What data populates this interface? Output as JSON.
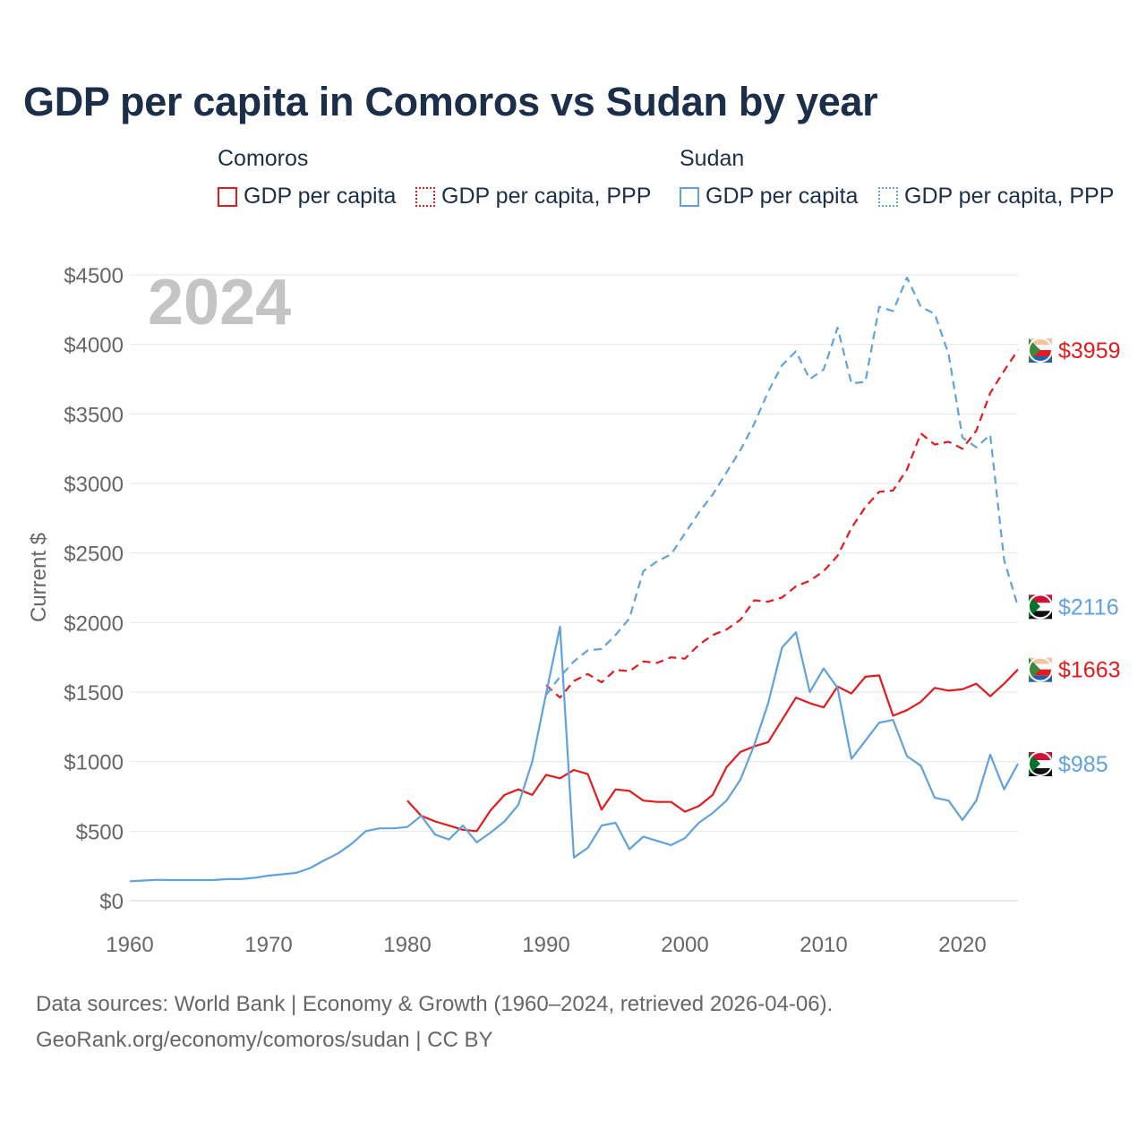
{
  "title": "GDP per capita in Comoros vs Sudan by year",
  "legend": {
    "groups": [
      {
        "name": "Comoros",
        "items": [
          "GDP per capita",
          "GDP per capita, PPP"
        ],
        "color": "#e41a1c"
      },
      {
        "name": "Sudan",
        "items": [
          "GDP per capita",
          "GDP per capita, PPP"
        ],
        "color": "#5fa2dd"
      }
    ]
  },
  "footer": {
    "line1": "Data sources: World Bank | Economy & Growth (1960–2024, retrieved 2026-04-06).",
    "line2": "GeoRank.org/economy/comoros/sudan | CC BY"
  },
  "chart_data": {
    "type": "line",
    "title": "GDP per capita in Comoros vs Sudan by year",
    "watermark": "2024",
    "xlabel": "",
    "ylabel": "Current $",
    "xlim": [
      1960,
      2024
    ],
    "ylim": [
      0,
      4500
    ],
    "x_ticks": [
      1960,
      1970,
      1980,
      1990,
      2000,
      2010,
      2020
    ],
    "y_ticks": [
      0,
      500,
      1000,
      1500,
      2000,
      2500,
      3000,
      3500,
      4000,
      4500
    ],
    "y_tick_labels": [
      "$0",
      "$500",
      "$1000",
      "$1500",
      "$2000",
      "$2500",
      "$3000",
      "$3500",
      "$4000",
      "$4500"
    ],
    "grid": true,
    "series": [
      {
        "name": "Comoros GDP per capita",
        "country": "Comoros",
        "color": "#e41a1c",
        "dashed": false,
        "end_label": "$1663",
        "x": [
          1980,
          1981,
          1982,
          1983,
          1984,
          1985,
          1986,
          1987,
          1988,
          1989,
          1990,
          1991,
          1992,
          1993,
          1994,
          1995,
          1996,
          1997,
          1998,
          1999,
          2000,
          2001,
          2002,
          2003,
          2004,
          2005,
          2006,
          2007,
          2008,
          2009,
          2010,
          2011,
          2012,
          2013,
          2014,
          2015,
          2016,
          2017,
          2018,
          2019,
          2020,
          2021,
          2022,
          2023,
          2024
        ],
        "values": [
          720,
          610,
          570,
          540,
          510,
          500,
          650,
          760,
          800,
          760,
          905,
          880,
          940,
          910,
          655,
          800,
          790,
          720,
          710,
          710,
          640,
          680,
          760,
          960,
          1070,
          1110,
          1140,
          1300,
          1460,
          1420,
          1390,
          1540,
          1490,
          1610,
          1620,
          1330,
          1370,
          1430,
          1530,
          1510,
          1520,
          1560,
          1470,
          1560,
          1663
        ]
      },
      {
        "name": "Comoros GDP per capita, PPP",
        "country": "Comoros",
        "color": "#e41a1c",
        "dashed": true,
        "end_label": "$3959",
        "x": [
          1990,
          1991,
          1992,
          1993,
          1994,
          1995,
          1996,
          1997,
          1998,
          1999,
          2000,
          2001,
          2002,
          2003,
          2004,
          2005,
          2006,
          2007,
          2008,
          2009,
          2010,
          2011,
          2012,
          2013,
          2014,
          2015,
          2016,
          2017,
          2018,
          2019,
          2020,
          2021,
          2022,
          2023,
          2024
        ],
        "values": [
          1550,
          1460,
          1580,
          1630,
          1570,
          1660,
          1650,
          1720,
          1710,
          1750,
          1740,
          1840,
          1910,
          1950,
          2020,
          2160,
          2150,
          2180,
          2260,
          2300,
          2370,
          2480,
          2680,
          2830,
          2940,
          2950,
          3100,
          3360,
          3280,
          3300,
          3250,
          3380,
          3650,
          3810,
          3959
        ]
      },
      {
        "name": "Sudan GDP per capita",
        "country": "Sudan",
        "color": "#5fa2dd",
        "dashed": false,
        "end_label": "$985",
        "x": [
          1960,
          1961,
          1962,
          1963,
          1964,
          1965,
          1966,
          1967,
          1968,
          1969,
          1970,
          1971,
          1972,
          1973,
          1974,
          1975,
          1976,
          1977,
          1978,
          1979,
          1980,
          1981,
          1982,
          1983,
          1984,
          1985,
          1986,
          1987,
          1988,
          1989,
          1990,
          1991,
          1992,
          1993,
          1994,
          1995,
          1996,
          1997,
          1998,
          1999,
          2000,
          2001,
          2002,
          2003,
          2004,
          2005,
          2006,
          2007,
          2008,
          2009,
          2010,
          2011,
          2012,
          2013,
          2014,
          2015,
          2016,
          2017,
          2018,
          2019,
          2020,
          2021,
          2022,
          2023,
          2024
        ],
        "values": [
          140,
          145,
          150,
          148,
          148,
          148,
          148,
          155,
          155,
          165,
          180,
          190,
          200,
          235,
          290,
          340,
          410,
          500,
          520,
          520,
          530,
          610,
          475,
          440,
          540,
          420,
          490,
          570,
          690,
          1000,
          1490,
          1970,
          310,
          380,
          540,
          560,
          370,
          460,
          430,
          400,
          450,
          560,
          630,
          720,
          870,
          1120,
          1420,
          1820,
          1930,
          1500,
          1670,
          1530,
          1020,
          1150,
          1280,
          1300,
          1040,
          970,
          740,
          720,
          580,
          720,
          1050,
          800,
          985
        ]
      },
      {
        "name": "Sudan GDP per capita, PPP",
        "country": "Sudan",
        "color": "#5fa2dd",
        "dashed": true,
        "end_label": "$2116",
        "x": [
          1990,
          1991,
          1992,
          1993,
          1994,
          1995,
          1996,
          1997,
          1998,
          1999,
          2000,
          2001,
          2002,
          2003,
          2004,
          2005,
          2006,
          2007,
          2008,
          2009,
          2010,
          2011,
          2012,
          2013,
          2014,
          2015,
          2016,
          2017,
          2018,
          2019,
          2020,
          2021,
          2022,
          2023,
          2024
        ],
        "values": [
          1480,
          1610,
          1720,
          1800,
          1810,
          1910,
          2030,
          2370,
          2440,
          2490,
          2640,
          2790,
          2920,
          3080,
          3240,
          3430,
          3660,
          3850,
          3950,
          3750,
          3820,
          4120,
          3720,
          3730,
          4270,
          4240,
          4480,
          4270,
          4220,
          3930,
          3330,
          3260,
          3350,
          2450,
          2116
        ]
      }
    ]
  }
}
